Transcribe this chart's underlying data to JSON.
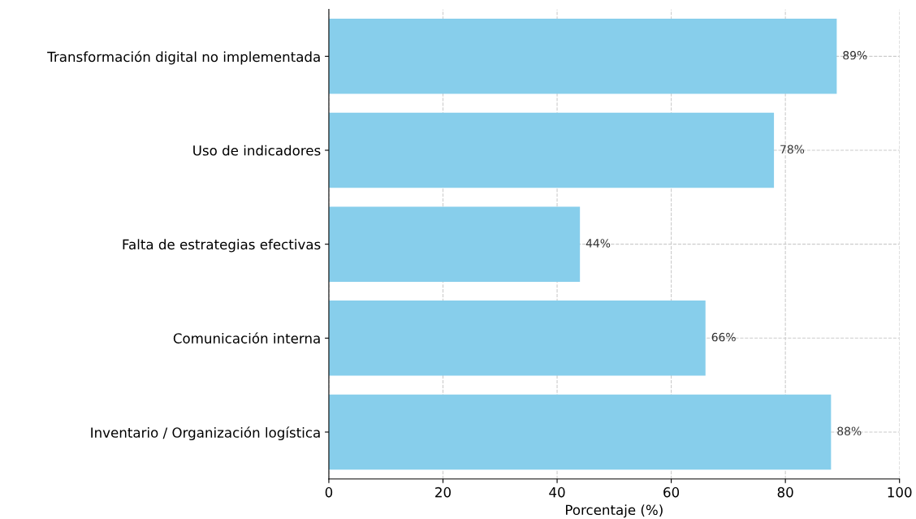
{
  "chart_data": {
    "type": "bar",
    "orientation": "horizontal",
    "xlabel": "Porcentaje (%)",
    "categories": [
      "Transformación digital no implementada",
      "Uso de indicadores",
      "Falta de estrategias efectivas",
      "Comunicación interna",
      "Inventario / Organización logística"
    ],
    "values": [
      89,
      78,
      44,
      66,
      88
    ],
    "value_labels": [
      "89%",
      "78%",
      "44%",
      "66%",
      "88%"
    ],
    "color": "#87ceeb",
    "xlim": [
      0,
      100
    ],
    "xticks": [
      0,
      20,
      40,
      60,
      80,
      100
    ],
    "grid": true
  }
}
